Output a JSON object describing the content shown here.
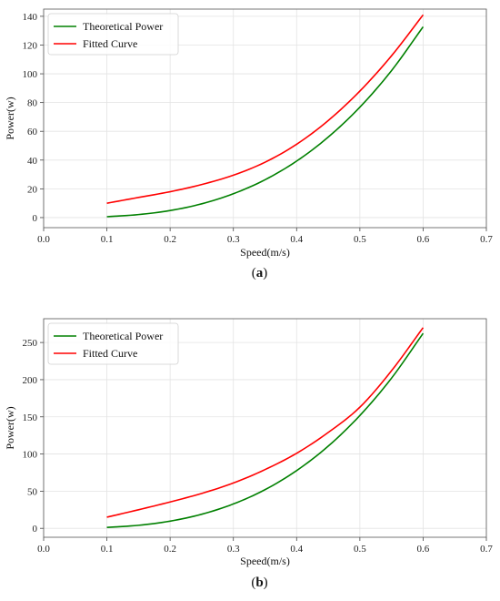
{
  "chart_data": [
    {
      "type": "line",
      "caption": "(a)",
      "caption_letter": "a",
      "xlabel": "Speed(m/s)",
      "ylabel": "Power(w)",
      "xlim": [
        0.0,
        0.7
      ],
      "ylim": [
        -7,
        145
      ],
      "xticks": [
        0.0,
        0.1,
        0.2,
        0.3,
        0.4,
        0.5,
        0.6,
        0.7
      ],
      "xtick_labels": [
        "0.0",
        "0.1",
        "0.2",
        "0.3",
        "0.4",
        "0.5",
        "0.6",
        "0.7"
      ],
      "yticks": [
        0,
        20,
        40,
        60,
        80,
        100,
        120,
        140
      ],
      "ytick_labels": [
        "0",
        "20",
        "40",
        "60",
        "80",
        "100",
        "120",
        "140"
      ],
      "grid": true,
      "legend": "top-left",
      "series": [
        {
          "name": "Theoretical Power",
          "color": "#008000",
          "x": [
            0.1,
            0.15,
            0.2,
            0.25,
            0.3,
            0.35,
            0.4,
            0.45,
            0.5,
            0.55,
            0.6
          ],
          "y": [
            0.6,
            2.1,
            4.9,
            9.6,
            16.6,
            26.3,
            39.3,
            56.0,
            76.8,
            102.2,
            132.7
          ]
        },
        {
          "name": "Fitted Curve",
          "color": "#ff0000",
          "x": [
            0.1,
            0.15,
            0.2,
            0.25,
            0.3,
            0.35,
            0.4,
            0.45,
            0.5,
            0.55,
            0.6
          ],
          "y": [
            10.0,
            14.0,
            18.0,
            23.0,
            29.5,
            38.5,
            51.0,
            67.5,
            88.0,
            112.5,
            141.0
          ]
        }
      ]
    },
    {
      "type": "line",
      "caption": "(b)",
      "caption_letter": "b",
      "xlabel": "Speed(m/s)",
      "ylabel": "Power(w)",
      "xlim": [
        0.0,
        0.7
      ],
      "ylim": [
        -12,
        282
      ],
      "xticks": [
        0.0,
        0.1,
        0.2,
        0.3,
        0.4,
        0.5,
        0.6,
        0.7
      ],
      "xtick_labels": [
        "0.0",
        "0.1",
        "0.2",
        "0.3",
        "0.4",
        "0.5",
        "0.6",
        "0.7"
      ],
      "yticks": [
        0,
        50,
        100,
        150,
        200,
        250
      ],
      "ytick_labels": [
        "0",
        "50",
        "100",
        "150",
        "200",
        "250"
      ],
      "grid": true,
      "legend": "top-left",
      "series": [
        {
          "name": "Theoretical Power",
          "color": "#008000",
          "x": [
            0.1,
            0.15,
            0.2,
            0.25,
            0.3,
            0.35,
            0.4,
            0.45,
            0.5,
            0.55,
            0.6
          ],
          "y": [
            1.2,
            4.1,
            9.7,
            19.0,
            32.8,
            52.0,
            77.7,
            110.6,
            151.8,
            202.0,
            262.3
          ]
        },
        {
          "name": "Fitted Curve",
          "color": "#ff0000",
          "x": [
            0.1,
            0.15,
            0.2,
            0.25,
            0.3,
            0.35,
            0.4,
            0.45,
            0.5,
            0.55,
            0.6
          ],
          "y": [
            15.0,
            25.0,
            35.5,
            47.0,
            61.0,
            79.0,
            101.0,
            129.0,
            163.0,
            212.0,
            270.0
          ]
        }
      ]
    }
  ]
}
